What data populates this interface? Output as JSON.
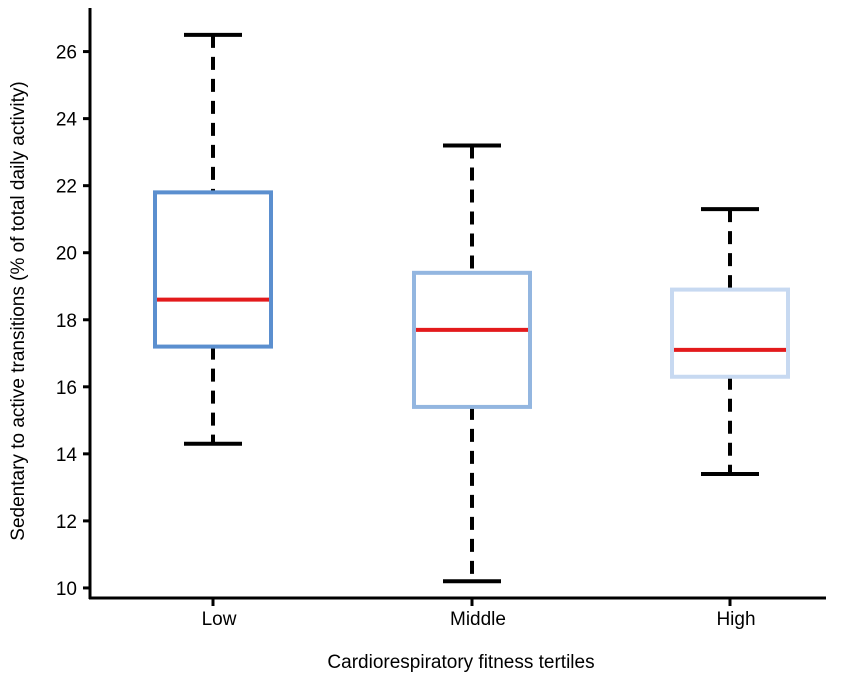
{
  "chart_data": {
    "type": "box",
    "title": "",
    "xlabel": "Cardiorespiratory fitness tertiles",
    "ylabel": "Sedentary to active transitions (% of total daily activity)",
    "ylim": [
      9.7,
      27.3
    ],
    "yticks": [
      "10",
      "12",
      "14",
      "16",
      "18",
      "20",
      "22",
      "24",
      "26"
    ],
    "grid": false,
    "categories": [
      "Low",
      "Middle",
      "High"
    ],
    "boxes": [
      {
        "category": "Low",
        "whisker_low": 14.3,
        "q1": 17.2,
        "median": 18.6,
        "q3": 21.8,
        "whisker_high": 26.5,
        "color": "#5b8fcf"
      },
      {
        "category": "Middle",
        "whisker_low": 10.2,
        "q1": 15.4,
        "median": 17.7,
        "q3": 19.4,
        "whisker_high": 23.2,
        "color": "#93b6e0"
      },
      {
        "category": "High",
        "whisker_low": 13.4,
        "q1": 16.3,
        "median": 17.1,
        "q3": 18.9,
        "whisker_high": 21.3,
        "color": "#c7d9f1"
      }
    ],
    "median_color": "#e31a1c",
    "whisker_color": "#000000"
  }
}
